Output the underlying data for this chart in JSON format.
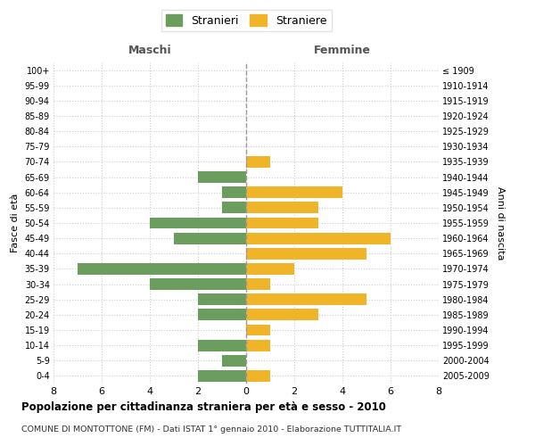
{
  "age_groups": [
    "0-4",
    "5-9",
    "10-14",
    "15-19",
    "20-24",
    "25-29",
    "30-34",
    "35-39",
    "40-44",
    "45-49",
    "50-54",
    "55-59",
    "60-64",
    "65-69",
    "70-74",
    "75-79",
    "80-84",
    "85-89",
    "90-94",
    "95-99",
    "100+"
  ],
  "birth_years": [
    "2005-2009",
    "2000-2004",
    "1995-1999",
    "1990-1994",
    "1985-1989",
    "1980-1984",
    "1975-1979",
    "1970-1974",
    "1965-1969",
    "1960-1964",
    "1955-1959",
    "1950-1954",
    "1945-1949",
    "1940-1944",
    "1935-1939",
    "1930-1934",
    "1925-1929",
    "1920-1924",
    "1915-1919",
    "1910-1914",
    "≤ 1909"
  ],
  "maschi": [
    2,
    1,
    2,
    0,
    2,
    2,
    4,
    7,
    0,
    3,
    4,
    1,
    1,
    2,
    0,
    0,
    0,
    0,
    0,
    0,
    0
  ],
  "femmine": [
    1,
    0,
    1,
    1,
    3,
    5,
    1,
    2,
    5,
    6,
    3,
    3,
    4,
    0,
    1,
    0,
    0,
    0,
    0,
    0,
    0
  ],
  "maschi_color": "#6b9e5e",
  "femmine_color": "#f0b429",
  "title": "Popolazione per cittadinanza straniera per età e sesso - 2010",
  "subtitle": "COMUNE DI MONTOTTONE (FM) - Dati ISTAT 1° gennaio 2010 - Elaborazione TUTTITALIA.IT",
  "xlabel_left": "Maschi",
  "xlabel_right": "Femmine",
  "ylabel_left": "Fasce di età",
  "ylabel_right": "Anni di nascita",
  "legend_stranieri": "Stranieri",
  "legend_straniere": "Straniere",
  "xlim": 8,
  "background_color": "#ffffff",
  "grid_color": "#cccccc"
}
